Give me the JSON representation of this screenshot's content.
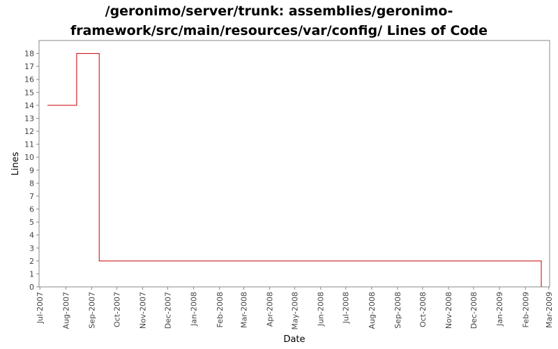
{
  "chart_data": {
    "type": "line",
    "step": true,
    "title_lines": [
      "/geronimo/server/trunk: assemblies/geronimo-",
      "framework/src/main/resources/var/config/ Lines of Code"
    ],
    "xlabel": "Date",
    "ylabel": "Lines",
    "x_tick_labels": [
      "Jul-2007",
      "Aug-2007",
      "Sep-2007",
      "Oct-2007",
      "Nov-2007",
      "Dec-2007",
      "Jan-2008",
      "Feb-2008",
      "Mar-2008",
      "Apr-2008",
      "May-2008",
      "Jun-2008",
      "Jul-2008",
      "Aug-2008",
      "Sep-2008",
      "Oct-2008",
      "Nov-2008",
      "Dec-2008",
      "Jan-2009",
      "Feb-2009",
      "Mar-2009"
    ],
    "y_ticks": [
      0,
      1,
      2,
      3,
      4,
      5,
      6,
      7,
      8,
      9,
      10,
      11,
      12,
      13,
      14,
      15,
      16,
      17,
      18
    ],
    "ylim": [
      0,
      19
    ],
    "xlim": [
      "2007-06-30",
      "2009-03-02"
    ],
    "series": [
      {
        "color": "#cc0000",
        "points": [
          {
            "x": "2007-07-10",
            "y": 14
          },
          {
            "x": "2007-08-14",
            "y": 18
          },
          {
            "x": "2007-09-10",
            "y": 2
          },
          {
            "x": "2009-02-20",
            "y": 0
          }
        ]
      }
    ],
    "grid": false,
    "legend": "none"
  }
}
